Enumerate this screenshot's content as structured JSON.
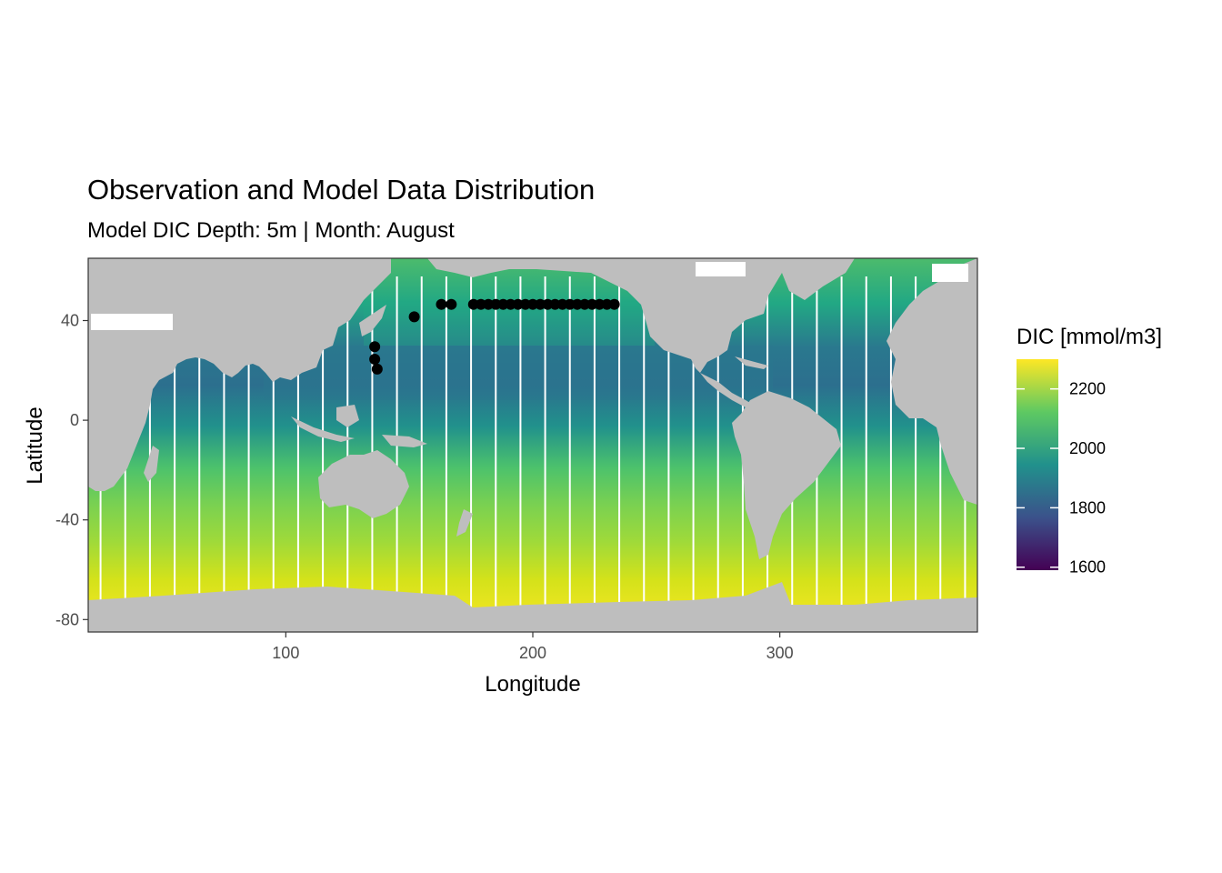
{
  "title": "Observation and Model Data Distribution",
  "subtitle": "Model DIC Depth: 5m | Month: August",
  "chart_data": {
    "type": "heatmap",
    "xlabel": "Longitude",
    "ylabel": "Latitude",
    "xlim": [
      20,
      380
    ],
    "ylim": [
      -85,
      65
    ],
    "x_ticks": [
      100,
      200,
      300
    ],
    "y_ticks": [
      -80,
      -40,
      0,
      40
    ],
    "grid": false,
    "legend": {
      "title": "DIC [mmol/m3]",
      "placement": "right",
      "range": [
        1590,
        2300
      ],
      "ticks": [
        1600,
        1800,
        2000,
        2200
      ],
      "colormap": [
        "#440154",
        "#3b528b",
        "#21918c",
        "#5ec962",
        "#fde725"
      ]
    },
    "land_color": "#bebebe",
    "observation_color": "#000000",
    "observations": [
      {
        "lon": 152,
        "lat": 41.5
      },
      {
        "lon": 136,
        "lat": 29.5
      },
      {
        "lon": 136,
        "lat": 24.5
      },
      {
        "lon": 137,
        "lat": 20.5
      },
      {
        "lon": 163,
        "lat": 46.5
      },
      {
        "lon": 167,
        "lat": 46.5
      },
      {
        "lon": 176,
        "lat": 46.5
      },
      {
        "lon": 179,
        "lat": 46.5
      },
      {
        "lon": 182,
        "lat": 46.5
      },
      {
        "lon": 185,
        "lat": 46.5
      },
      {
        "lon": 188,
        "lat": 46.5
      },
      {
        "lon": 191,
        "lat": 46.5
      },
      {
        "lon": 194,
        "lat": 46.5
      },
      {
        "lon": 197,
        "lat": 46.5
      },
      {
        "lon": 200,
        "lat": 46.5
      },
      {
        "lon": 203,
        "lat": 46.5
      },
      {
        "lon": 206,
        "lat": 46.5
      },
      {
        "lon": 209,
        "lat": 46.5
      },
      {
        "lon": 212,
        "lat": 46.5
      },
      {
        "lon": 215,
        "lat": 46.5
      },
      {
        "lon": 218,
        "lat": 46.5
      },
      {
        "lon": 221,
        "lat": 46.5
      },
      {
        "lon": 224,
        "lat": 46.5
      },
      {
        "lon": 227,
        "lat": 46.5
      },
      {
        "lon": 230,
        "lat": 46.5
      },
      {
        "lon": 233,
        "lat": 46.5
      }
    ]
  }
}
